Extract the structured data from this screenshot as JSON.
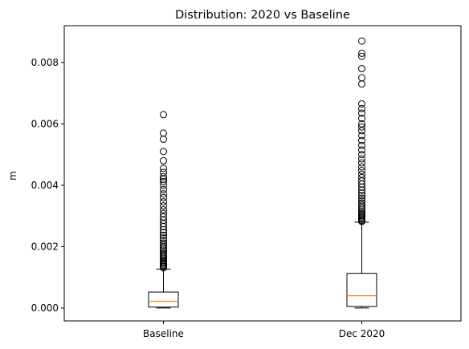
{
  "chart_data": {
    "type": "boxplot",
    "title": "Distribution: 2020 vs Baseline",
    "xlabel": "",
    "ylabel": "m",
    "ylim": [
      -0.00042,
      0.0092
    ],
    "yticks": [
      0.0,
      0.002,
      0.004,
      0.006,
      0.008
    ],
    "ytick_labels": [
      "0.000",
      "0.002",
      "0.004",
      "0.006",
      "0.008"
    ],
    "categories": [
      "Baseline",
      "Dec 2020"
    ],
    "grid": false,
    "boxes": [
      {
        "name": "Baseline",
        "whisker_low": 0.0,
        "q1": 3e-05,
        "median": 0.00022,
        "q3": 0.00052,
        "whisker_high": 0.00127,
        "outliers": [
          0.00131,
          0.00135,
          0.00139,
          0.00143,
          0.00147,
          0.00151,
          0.00155,
          0.0016,
          0.00165,
          0.0017,
          0.00175,
          0.0018,
          0.00186,
          0.00192,
          0.00198,
          0.00205,
          0.00212,
          0.0022,
          0.00228,
          0.00237,
          0.00246,
          0.00255,
          0.00265,
          0.00275,
          0.00286,
          0.00297,
          0.00308,
          0.0032,
          0.00333,
          0.00346,
          0.0036,
          0.00372,
          0.00386,
          0.004,
          0.00412,
          0.0042,
          0.00428,
          0.00442,
          0.00455,
          0.0048,
          0.0051,
          0.0055,
          0.0057,
          0.0063
        ]
      },
      {
        "name": "Dec 2020",
        "whisker_low": 0.0,
        "q1": 5e-05,
        "median": 0.0004,
        "q3": 0.00113,
        "whisker_high": 0.0028,
        "outliers": [
          0.00282,
          0.00285,
          0.00289,
          0.00293,
          0.00297,
          0.00301,
          0.00305,
          0.0031,
          0.00316,
          0.00322,
          0.00328,
          0.00335,
          0.00342,
          0.0035,
          0.00358,
          0.00366,
          0.00375,
          0.00384,
          0.00394,
          0.00404,
          0.00414,
          0.00425,
          0.00436,
          0.00448,
          0.0046,
          0.00473,
          0.00486,
          0.005,
          0.00515,
          0.0053,
          0.00546,
          0.00562,
          0.00578,
          0.0059,
          0.006,
          0.00618,
          0.00635,
          0.0065,
          0.00665,
          0.0073,
          0.0075,
          0.0078,
          0.0082,
          0.0083,
          0.0087
        ]
      }
    ],
    "colors": {
      "box": "#000000",
      "median": "#ff7f0e",
      "outlier_edge": "#000000",
      "background": "#ffffff"
    }
  }
}
